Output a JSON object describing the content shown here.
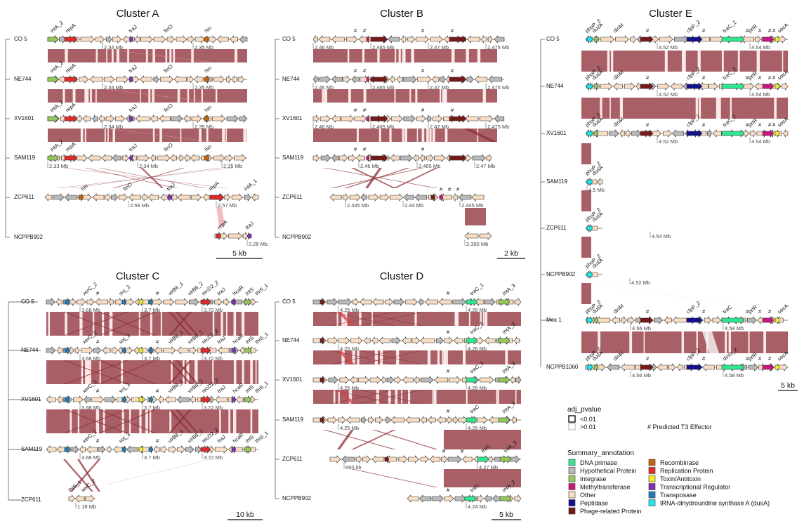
{
  "colors": {
    "DNA primase": "#2ee892",
    "Hypothetical Protein": "#b9b9b9",
    "Integrase": "#95c75b",
    "Methyltransferase": "#c8187e",
    "Other": "#f8dcc3",
    "Peptidase": "#12108a",
    "Phage-related Protein": "#761a19",
    "Recombinase": "#c4640e",
    "Replication Protein": "#dd2b2b",
    "Toxin/Antitoxin": "#f4ef23",
    "Transcriptional Regulator": "#7f2fb8",
    "Transposase": "#1f7cb8",
    "tRNA-dihydrouridine synthase A (dusA)": "#1fe6ee",
    "link_dark": "#8e2e33",
    "link_light": "#eba5a5",
    "link_block": "#a85f66"
  },
  "legend": {
    "pvalue_title": "adj_pvalue",
    "pvalue_items": [
      "<0.01",
      ">0.01"
    ],
    "t3e_note": "# Predicted T3 Effector",
    "summary_title": "Summary_annotation",
    "col1": [
      "DNA primase",
      "Hypothetical Protein",
      "Integrase",
      "Methyltransferase",
      "Other",
      "Peptidase",
      "Phage-related Protein"
    ],
    "col2": [
      "Recombinase",
      "Replication Protein",
      "Toxin/Antitoxin",
      "Transcriptional Regulator",
      "Transposase",
      "tRNA-dihydrouridine synthase A (dusA)"
    ]
  },
  "panels": [
    {
      "id": "A",
      "title": "Cluster  A",
      "scale": "5 kb",
      "rows": [
        {
          "strain": "CO 5",
          "genes": [
            "intA_2",
            "repA",
            "traJ",
            "finO",
            "hin"
          ],
          "positions": [
            "2.34 Mb",
            "2.35 Mb"
          ],
          "t3e": []
        },
        {
          "strain": "NE744",
          "genes": [
            "intA_2",
            "repA",
            "traJ",
            "finO",
            "hin"
          ],
          "positions": [
            "2.34 Mb",
            "2.35 Mb"
          ],
          "t3e": []
        },
        {
          "strain": "XV1601",
          "genes": [
            "intA_2",
            "repA",
            "traJ",
            "finO",
            "hin"
          ],
          "positions": [
            "2.34 Mb",
            "2.35 Mb"
          ],
          "t3e": []
        },
        {
          "strain": "SAM119",
          "genes": [
            "intA_2",
            "repA",
            "traJ",
            "finO",
            "hin"
          ],
          "positions": [
            "2.33 Mb",
            "2.34 Mb",
            "2.35 Mb"
          ],
          "t3e": []
        },
        {
          "strain": "ZCP611",
          "genes": [
            "hin",
            "finO",
            "traJ",
            "repA",
            "intA_1"
          ],
          "positions": [
            "2.56 Mb",
            "2.57 Mb"
          ],
          "t3e": []
        },
        {
          "strain": "NCPPB902",
          "genes": [
            "repA",
            "traJ"
          ],
          "positions": [
            "2.28 Mb"
          ],
          "t3e": []
        }
      ]
    },
    {
      "id": "B",
      "title": "Cluster  B",
      "scale": "2 kb",
      "rows": [
        {
          "strain": "CO 5",
          "genes": [],
          "positions": [
            "2.46 Mb",
            "2.465 Mb",
            "2.47 Mb",
            "2.475 Mb"
          ],
          "t3e": [
            "#",
            "#",
            "#",
            "#"
          ]
        },
        {
          "strain": "NE744",
          "genes": [],
          "positions": [
            "2.46 Mb",
            "2.465 Mb",
            "2.47 Mb",
            "2.475 Mb"
          ],
          "t3e": [
            "#",
            "#",
            "#",
            "#"
          ]
        },
        {
          "strain": "XV1601",
          "genes": [],
          "positions": [
            "2.46 Mb",
            "2.465 Mb",
            "2.47 Mb",
            "2.475 Mb"
          ],
          "t3e": [
            "#",
            "#",
            "#",
            "#"
          ]
        },
        {
          "strain": "SAM119",
          "genes": [],
          "positions": [
            "2.46 Mb",
            "2.465 Mb",
            "2.47 Mb"
          ],
          "t3e": [
            "#",
            "#",
            "#"
          ]
        },
        {
          "strain": "ZCP611",
          "genes": [],
          "positions": [
            "2.435 Mb",
            "2.44 Mb",
            "2.445 Mb"
          ],
          "t3e": [
            "#",
            "#",
            "#"
          ]
        },
        {
          "strain": "NCPPB902",
          "genes": [],
          "positions": [
            "2.395 Mb"
          ],
          "t3e": []
        }
      ]
    },
    {
      "id": "C",
      "title": "Cluster  C",
      "scale": "10 kb",
      "rows": [
        {
          "strain": "CO 5",
          "genes": [
            "xerC_2",
            "soj_3",
            "virB6_1",
            "virB6_2",
            "recD2_2",
            "traJ",
            "hcaR",
            "intS",
            "thiS_1"
          ],
          "positions": [
            "3.68 Mb",
            "3.7 Mb",
            "3.72 Mb"
          ],
          "t3e": [
            "#",
            "#"
          ]
        },
        {
          "strain": "NE744",
          "genes": [
            "xerC_2",
            "soj_3",
            "virB6_1",
            "virB6_2",
            "recD2_2",
            "traJ",
            "hcaR",
            "intS",
            "thiS_1"
          ],
          "positions": [
            "3.68 Mb",
            "3.7 Mb",
            "3.72 Mb"
          ],
          "t3e": [
            "#",
            "#"
          ]
        },
        {
          "strain": "XV1601",
          "genes": [
            "xerC_2",
            "soj_3",
            "virB6_1",
            "virB6_2",
            "recD2_2",
            "traJ",
            "hcaR",
            "intS",
            "thiS_1"
          ],
          "positions": [
            "3.68 Mb",
            "3.7 Mb",
            "3.72 Mb"
          ],
          "t3e": [
            "#",
            "#"
          ]
        },
        {
          "strain": "SAM119",
          "genes": [
            "xerC_2",
            "soj_3",
            "virB6_1",
            "virB6_2",
            "recD2_2",
            "traJ",
            "hcaR",
            "intS",
            "thiS_1"
          ],
          "positions": [
            "3.68 Mb",
            "3.7 Mb",
            "3.72 Mb"
          ],
          "t3e": [
            "#",
            "#"
          ]
        },
        {
          "strain": "ZCP611",
          "genes": [
            "thiS_1",
            "xerC_2"
          ],
          "positions": [
            "1.18 Mb"
          ],
          "t3e": []
        }
      ]
    },
    {
      "id": "D",
      "title": "Cluster  D",
      "scale": "5 kb",
      "rows": [
        {
          "strain": "CO 5",
          "genes": [
            "traC_1",
            "intA_3"
          ],
          "positions": [
            "4.25 Mb",
            "4.26 Mb"
          ],
          "t3e": [
            "#"
          ]
        },
        {
          "strain": "NE744",
          "genes": [
            "traC_1",
            "intA_3"
          ],
          "positions": [
            "4.25 Mb",
            "4.26 Mb"
          ],
          "t3e": [
            "#"
          ]
        },
        {
          "strain": "XV1601",
          "genes": [
            "traC_1",
            "intA_3"
          ],
          "positions": [
            "4.25 Mb",
            "4.26 Mb"
          ],
          "t3e": [
            "#"
          ]
        },
        {
          "strain": "SAM119",
          "genes": [
            "traC",
            "intA_3"
          ],
          "positions": [
            "4.25 Mb",
            "4.26 Mb"
          ],
          "t3e": [
            "#"
          ]
        },
        {
          "strain": "ZCP611",
          "genes": [
            "traC",
            "intA_3"
          ],
          "positions": [
            "660 kb",
            "4.27 Mb"
          ],
          "t3e": [
            "#",
            "#"
          ]
        },
        {
          "strain": "NCPPB902",
          "genes": [
            "traC",
            "intA_2"
          ],
          "positions": [
            "4.24 Mb"
          ],
          "t3e": [
            "#"
          ]
        }
      ]
    },
    {
      "id": "E",
      "title": "Cluster  E",
      "scale": "5 kb",
      "rows": [
        {
          "strain": "CO 5",
          "genes": [
            "phoP_2",
            "dusA",
            "dinM",
            "clpP_2",
            "traC_2",
            "prtR",
            "socA"
          ],
          "positions": [
            "4.52 Mb",
            "4.54 Mb"
          ],
          "t3e": [
            "#",
            "#",
            "#",
            "#",
            "#",
            "#"
          ]
        },
        {
          "strain": "NE744",
          "genes": [
            "phoP_2",
            "dusA",
            "dinM",
            "clpP_2",
            "traC_2",
            "prtR",
            "socA"
          ],
          "positions": [
            "4.52 Mb",
            "4.54 Mb"
          ],
          "t3e": [
            "#",
            "#",
            "#",
            "#",
            "#",
            "#"
          ]
        },
        {
          "strain": "XV1601",
          "genes": [
            "phoP_2",
            "dusA",
            "dinM",
            "clpP_2",
            "traC_2",
            "prtR",
            "socA"
          ],
          "positions": [
            "4.52 Mb",
            "4.54 Mb"
          ],
          "t3e": [
            "#",
            "#",
            "#",
            "#",
            "#",
            "#"
          ]
        },
        {
          "strain": "SAM119",
          "genes": [
            "phoP_2",
            "dusA"
          ],
          "positions": [
            "4.5 Mb"
          ],
          "t3e": []
        },
        {
          "strain": "ZCP611",
          "genes": [
            "phoP_2",
            "dusA"
          ],
          "positions": [
            "4.54 Mb"
          ],
          "t3e": []
        },
        {
          "strain": "NCPPB902",
          "genes": [
            "phoP_2",
            "dusA"
          ],
          "positions": [
            "4.52 Mb"
          ],
          "t3e": []
        },
        {
          "strain": "Mex 1",
          "genes": [
            "phoP_2",
            "dusA",
            "dinM",
            "clpP_2",
            "traC",
            "prtR",
            "socA"
          ],
          "positions": [
            "4.56 Mb",
            "4.58 Mb"
          ],
          "t3e": [
            "#",
            "#",
            "#",
            "#",
            "#"
          ]
        },
        {
          "strain": "NCPPB1060",
          "genes": [
            "phoP_2",
            "dusA",
            "dinM",
            "clpP_2",
            "dinG_2",
            "prtR",
            "socA"
          ],
          "positions": [
            "4.56 Mb",
            "4.58 Mb"
          ],
          "t3e": [
            "#",
            "#",
            "#",
            "#",
            "#"
          ]
        }
      ]
    }
  ]
}
